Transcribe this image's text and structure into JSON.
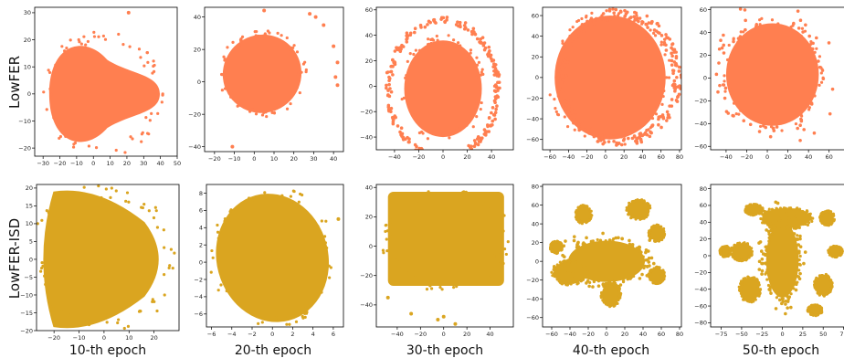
{
  "chart_data": {
    "type": "scatter",
    "row_labels": [
      "LowFER",
      "LowFER-ISD"
    ],
    "column_labels": [
      "10-th epoch",
      "20-th epoch",
      "30-th epoch",
      "40-th epoch",
      "50-th epoch"
    ],
    "colors": {
      "LowFER": "#ff7f50",
      "LowFER-ISD": "#daa520"
    },
    "panels": [
      {
        "row": 0,
        "col": 0,
        "xlim": [
          -35,
          50
        ],
        "ylim": [
          -23,
          32
        ],
        "xticks": [
          -30,
          -20,
          -10,
          0,
          10,
          20,
          30,
          40,
          50
        ],
        "yticks": [
          -20,
          -10,
          0,
          10,
          20,
          30
        ],
        "blobs": [
          {
            "shape": "pear",
            "cx": 5,
            "cy": 0,
            "rx": 33,
            "ry": 21
          }
        ],
        "points": [
          [
            21,
            30
          ]
        ]
      },
      {
        "row": 0,
        "col": 1,
        "xlim": [
          -25,
          45
        ],
        "ylim": [
          -43,
          46
        ],
        "xticks": [
          -20,
          -10,
          0,
          10,
          20,
          30,
          40
        ],
        "yticks": [
          -40,
          -20,
          0,
          20,
          40
        ],
        "blobs": [
          {
            "shape": "ellipse",
            "cx": 4,
            "cy": 5,
            "rx": 20,
            "ry": 24,
            "rot": -40
          }
        ],
        "points": [
          [
            5,
            44
          ],
          [
            28,
            42
          ],
          [
            31,
            40
          ],
          [
            35,
            35
          ],
          [
            40,
            22
          ],
          [
            42,
            12
          ],
          [
            41,
            3
          ],
          [
            42,
            -2
          ],
          [
            -11,
            -40
          ]
        ]
      },
      {
        "row": 0,
        "col": 2,
        "xlim": [
          -55,
          58
        ],
        "ylim": [
          -50,
          62
        ],
        "xticks": [
          -40,
          -20,
          0,
          20,
          40
        ],
        "yticks": [
          -40,
          -20,
          0,
          20,
          40,
          60
        ],
        "blobs": [
          {
            "shape": "ellipse",
            "cx": 0,
            "cy": -2,
            "rx": 32,
            "ry": 38,
            "rot": 0
          }
        ],
        "ring": {
          "cx": 0,
          "cy": -2,
          "rx": 45,
          "ry": 54,
          "width": 5
        }
      },
      {
        "row": 0,
        "col": 3,
        "xlim": [
          -68,
          82
        ],
        "ylim": [
          -70,
          68
        ],
        "xticks": [
          -60,
          -40,
          -20,
          0,
          20,
          40,
          60,
          80
        ],
        "yticks": [
          -60,
          -40,
          -20,
          0,
          20,
          40,
          60
        ],
        "blobs": [
          {
            "shape": "ellipse",
            "cx": 5,
            "cy": 0,
            "rx": 60,
            "ry": 60,
            "rot": 0
          }
        ],
        "ring": {
          "cx": 15,
          "cy": 0,
          "rx": 62,
          "ry": 62,
          "width": 10
        }
      },
      {
        "row": 0,
        "col": 4,
        "xlim": [
          -55,
          78
        ],
        "ylim": [
          -63,
          62
        ],
        "xticks": [
          -40,
          -20,
          0,
          20,
          40,
          60
        ],
        "yticks": [
          -60,
          -40,
          -20,
          0,
          20,
          40,
          60
        ],
        "blobs": [
          {
            "shape": "ellipse",
            "cx": 5,
            "cy": 3,
            "rx": 45,
            "ry": 45,
            "rot": 0
          }
        ],
        "scatter_outliers": 60
      },
      {
        "row": 1,
        "col": 0,
        "xlim": [
          -27,
          30
        ],
        "ylim": [
          -20,
          21
        ],
        "xticks": [
          -20,
          -10,
          0,
          10,
          20
        ],
        "yticks": [
          -20,
          -15,
          -10,
          -5,
          0,
          5,
          10,
          15,
          20
        ],
        "blobs": [
          {
            "shape": "triangle",
            "cx": 0,
            "cy": 0,
            "rx": 27,
            "ry": 19
          }
        ]
      },
      {
        "row": 1,
        "col": 1,
        "xlim": [
          -6.5,
          7
        ],
        "ylim": [
          -7.5,
          9
        ],
        "xticks": [
          -6,
          -4,
          -2,
          0,
          2,
          4,
          6
        ],
        "yticks": [
          -6,
          -4,
          -2,
          0,
          2,
          4,
          6,
          8
        ],
        "blobs": [
          {
            "shape": "ellipse",
            "cx": 0,
            "cy": 0.5,
            "rx": 5.5,
            "ry": 7.5,
            "rot": -15
          }
        ],
        "points": [
          [
            6.5,
            5
          ]
        ]
      },
      {
        "row": 1,
        "col": 2,
        "xlim": [
          -58,
          60
        ],
        "ylim": [
          -55,
          42
        ],
        "xticks": [
          -40,
          -20,
          0,
          20,
          40
        ],
        "yticks": [
          -40,
          -20,
          0,
          20,
          40
        ],
        "blobs": [
          {
            "shape": "rect",
            "cx": 2,
            "cy": 5,
            "rx": 50,
            "ry": 32
          }
        ],
        "points": [
          [
            -5,
            -50
          ],
          [
            10,
            -53
          ],
          [
            0,
            -48
          ],
          [
            -28,
            -46
          ],
          [
            -48,
            -35
          ]
        ]
      },
      {
        "row": 1,
        "col": 3,
        "xlim": [
          -70,
          82
        ],
        "ylim": [
          -70,
          82
        ],
        "xticks": [
          -60,
          -40,
          -20,
          0,
          20,
          40,
          60,
          80
        ],
        "yticks": [
          -60,
          -40,
          -20,
          0,
          20,
          40,
          60,
          80
        ],
        "blobs": [
          {
            "shape": "ellipse",
            "cx": 0,
            "cy": 0,
            "rx": 42,
            "ry": 22,
            "rot": 0
          },
          {
            "shape": "ellipse",
            "cx": -25,
            "cy": 50,
            "rx": 8,
            "ry": 9,
            "rot": 0
          },
          {
            "shape": "ellipse",
            "cx": 35,
            "cy": 55,
            "rx": 12,
            "ry": 10,
            "rot": 0
          },
          {
            "shape": "ellipse",
            "cx": 55,
            "cy": 30,
            "rx": 8,
            "ry": 8,
            "rot": 0
          },
          {
            "shape": "ellipse",
            "cx": -40,
            "cy": -12,
            "rx": 18,
            "ry": 12,
            "rot": 0
          },
          {
            "shape": "ellipse",
            "cx": 5,
            "cy": -35,
            "rx": 10,
            "ry": 12,
            "rot": 0
          },
          {
            "shape": "ellipse",
            "cx": 55,
            "cy": -15,
            "rx": 8,
            "ry": 8,
            "rot": 0
          },
          {
            "shape": "ellipse",
            "cx": -55,
            "cy": 15,
            "rx": 6,
            "ry": 6,
            "rot": 0
          }
        ],
        "scatter_outliers": 60
      },
      {
        "row": 1,
        "col": 4,
        "xlim": [
          -88,
          80
        ],
        "ylim": [
          -85,
          85
        ],
        "xticks": [
          -75,
          -50,
          -25,
          0,
          25,
          50,
          75
        ],
        "yticks": [
          -80,
          -60,
          -40,
          -20,
          0,
          20,
          40,
          60,
          80
        ],
        "blobs": [
          {
            "shape": "ellipse",
            "cx": 0,
            "cy": -5,
            "rx": 20,
            "ry": 45,
            "rot": 0
          },
          {
            "shape": "ellipse",
            "cx": 5,
            "cy": 45,
            "rx": 30,
            "ry": 12,
            "rot": 0
          },
          {
            "shape": "ellipse",
            "cx": -50,
            "cy": 5,
            "rx": 12,
            "ry": 10,
            "rot": 0
          },
          {
            "shape": "ellipse",
            "cx": -40,
            "cy": -40,
            "rx": 12,
            "ry": 14,
            "rot": 0
          },
          {
            "shape": "ellipse",
            "cx": 50,
            "cy": -35,
            "rx": 10,
            "ry": 12,
            "rot": 0
          },
          {
            "shape": "ellipse",
            "cx": 55,
            "cy": 45,
            "rx": 8,
            "ry": 8,
            "rot": 0
          },
          {
            "shape": "ellipse",
            "cx": -35,
            "cy": 55,
            "rx": 10,
            "ry": 6,
            "rot": 0
          },
          {
            "shape": "ellipse",
            "cx": 40,
            "cy": -65,
            "rx": 8,
            "ry": 6,
            "rot": 0
          },
          {
            "shape": "ellipse",
            "cx": -70,
            "cy": 5,
            "rx": 6,
            "ry": 6,
            "rot": 0
          },
          {
            "shape": "ellipse",
            "cx": 65,
            "cy": 5,
            "rx": 8,
            "ry": 6,
            "rot": 0
          }
        ],
        "scatter_outliers": 70
      }
    ]
  }
}
